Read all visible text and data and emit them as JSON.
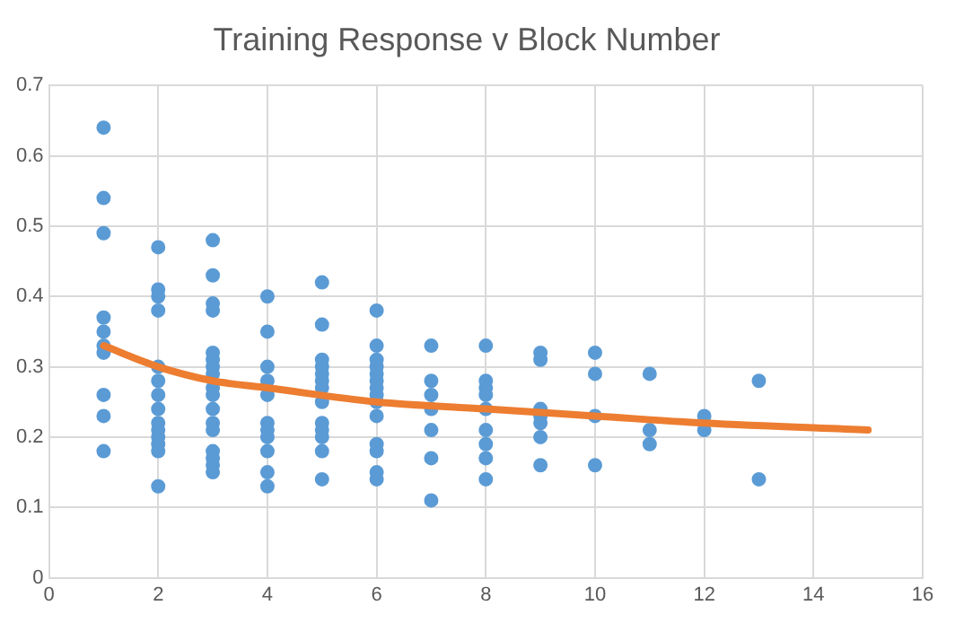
{
  "chart_data": {
    "type": "scatter",
    "title": "Training Response v Block Number",
    "xlim": [
      0,
      16
    ],
    "xticks": [
      0,
      2,
      4,
      6,
      8,
      10,
      12,
      14,
      16
    ],
    "ylim": [
      0,
      0.7
    ],
    "yticks": [
      0,
      0.1,
      0.2,
      0.3,
      0.4,
      0.5,
      0.6,
      0.7
    ],
    "grid": true,
    "series": [
      {
        "marker": "circle",
        "color": "#5b9bd5",
        "x": [
          1,
          1,
          1,
          1,
          1,
          1,
          1,
          1,
          1,
          1,
          2,
          2,
          2,
          2,
          2,
          2,
          2,
          2,
          2,
          2,
          2,
          2,
          2,
          2,
          3,
          3,
          3,
          3,
          3,
          3,
          3,
          3,
          3,
          3,
          3,
          3,
          3,
          3,
          3,
          3,
          3,
          4,
          4,
          4,
          4,
          4,
          4,
          4,
          4,
          4,
          4,
          4,
          5,
          5,
          5,
          5,
          5,
          5,
          5,
          5,
          5,
          5,
          5,
          5,
          5,
          6,
          6,
          6,
          6,
          6,
          6,
          6,
          6,
          6,
          6,
          6,
          6,
          6,
          6,
          7,
          7,
          7,
          7,
          7,
          7,
          7,
          8,
          8,
          8,
          8,
          8,
          8,
          8,
          8,
          8,
          9,
          9,
          9,
          9,
          9,
          9,
          9,
          10,
          10,
          10,
          10,
          11,
          11,
          11,
          12,
          12,
          13,
          13
        ],
        "values": [
          0.64,
          0.54,
          0.49,
          0.37,
          0.35,
          0.33,
          0.32,
          0.26,
          0.23,
          0.18,
          0.47,
          0.41,
          0.4,
          0.38,
          0.3,
          0.28,
          0.26,
          0.24,
          0.22,
          0.21,
          0.2,
          0.19,
          0.18,
          0.13,
          0.48,
          0.43,
          0.39,
          0.38,
          0.32,
          0.31,
          0.3,
          0.29,
          0.27,
          0.26,
          0.24,
          0.22,
          0.21,
          0.18,
          0.17,
          0.16,
          0.15,
          0.4,
          0.35,
          0.3,
          0.28,
          0.26,
          0.22,
          0.21,
          0.2,
          0.18,
          0.15,
          0.13,
          0.42,
          0.36,
          0.31,
          0.3,
          0.29,
          0.28,
          0.27,
          0.25,
          0.22,
          0.21,
          0.2,
          0.18,
          0.14,
          0.38,
          0.33,
          0.31,
          0.3,
          0.29,
          0.28,
          0.27,
          0.26,
          0.25,
          0.23,
          0.19,
          0.18,
          0.15,
          0.14,
          0.33,
          0.28,
          0.26,
          0.24,
          0.21,
          0.17,
          0.11,
          0.33,
          0.28,
          0.27,
          0.26,
          0.24,
          0.21,
          0.19,
          0.17,
          0.14,
          0.32,
          0.31,
          0.24,
          0.23,
          0.22,
          0.2,
          0.16,
          0.32,
          0.29,
          0.23,
          0.16,
          0.29,
          0.21,
          0.19,
          0.23,
          0.21,
          0.28,
          0.14
        ]
      },
      {
        "type": "line",
        "color": "#ed7d31",
        "x": [
          1,
          2,
          3,
          4,
          6,
          8,
          10,
          12,
          15
        ],
        "values": [
          0.33,
          0.3,
          0.28,
          0.27,
          0.25,
          0.24,
          0.23,
          0.22,
          0.21
        ]
      }
    ]
  }
}
